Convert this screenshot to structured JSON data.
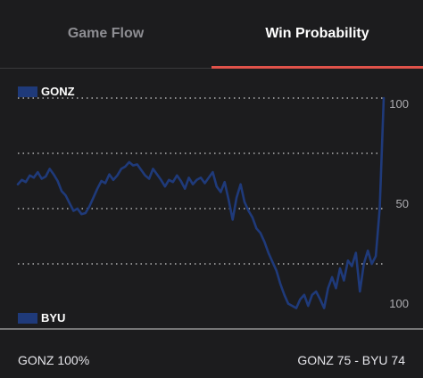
{
  "tabs": [
    {
      "label": "Game Flow",
      "active": false
    },
    {
      "label": "Win Probability",
      "active": true
    }
  ],
  "colors": {
    "accent": "#e0524a",
    "line": "#1f3a7a",
    "home_swatch": "#1f3a7a",
    "away_swatch": "#1f3a7a"
  },
  "legend": {
    "top_team": "GONZ",
    "bottom_team": "BYU"
  },
  "axis_labels": {
    "top": "100",
    "mid": "50",
    "bottom": "100"
  },
  "footer": {
    "left_text": "GONZ 100%",
    "right_text": "GONZ 75 - BYU 74"
  },
  "chart_data": {
    "type": "line",
    "ylim": [
      -100,
      100
    ],
    "gridlines": [
      100,
      50,
      0,
      -50
    ],
    "series": [
      {
        "values": [
          22,
          26,
          24,
          30,
          28,
          33,
          27,
          29,
          36,
          31,
          25,
          16,
          12,
          5,
          -2,
          0,
          -5,
          -4,
          2,
          10,
          18,
          25,
          23,
          31,
          26,
          30,
          36,
          38,
          42,
          39,
          40,
          35,
          30,
          27,
          36,
          31,
          26,
          20,
          26,
          24,
          30,
          25,
          18,
          28,
          22,
          26,
          28,
          23,
          28,
          33,
          20,
          15,
          24,
          8,
          -10,
          10,
          22,
          6,
          -2,
          -8,
          -18,
          -22,
          -30,
          -40,
          -48,
          -56,
          -68,
          -78,
          -86,
          -88,
          -90,
          -82,
          -78,
          -88,
          -78,
          -75,
          -82,
          -90,
          -72,
          -62,
          -72,
          -54,
          -65,
          -47,
          -52,
          -40,
          -75,
          -50,
          -38,
          -50,
          -43,
          0,
          100
        ]
      }
    ]
  }
}
